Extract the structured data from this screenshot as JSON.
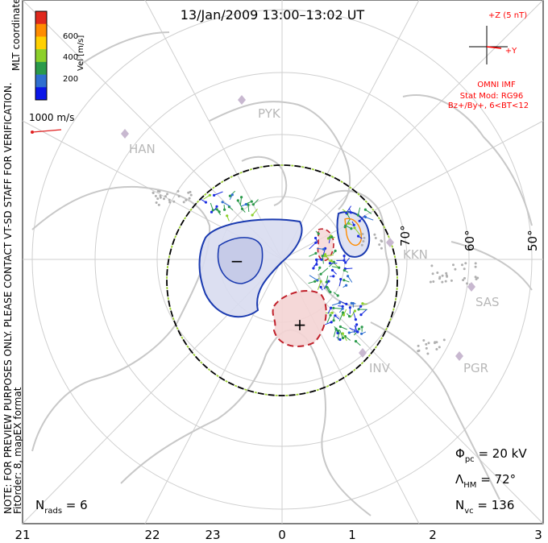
{
  "title": "13/Jan/2009  13:00–13:02  UT",
  "imf_box": {
    "z_label": "+Z (5 nT)",
    "y_label": "+Y",
    "omni": "OMNI IMF",
    "stat_mod": "Stat Mod: RG96",
    "condition": "Bz+/By+, 6<BT<12"
  },
  "colorbar": {
    "label": "Vel [m/s]",
    "ticks": [
      "600",
      "400",
      "200"
    ],
    "colors": [
      "#e0291d",
      "#ff8c00",
      "#ffd000",
      "#8cd02a",
      "#2a9a4a",
      "#2f6fd0",
      "#0a16e8"
    ]
  },
  "coords_label": "MLT coordinates",
  "vector_scale": "1000 m/s",
  "left_note": "NOTE: FOR PREVIEW PURPOSES ONLY. PLEASE CONTACT VT-SD STAFF FOR VERIFICATION.",
  "fit_order": "FitOrder: 8, mapEX format",
  "lat_labels": [
    "70°",
    "60°",
    "50°"
  ],
  "site_labels": [
    "PYK",
    "HAN",
    "KKN",
    "SAS",
    "INV",
    "PGR"
  ],
  "mlt_ticks": [
    "21",
    "22",
    "23",
    "0",
    "1",
    "2",
    "3"
  ],
  "stats": {
    "pc_sym": "Φ",
    "pc_sub": "pc",
    "pc_val": " = 20 kV",
    "hm_sym": "Λ",
    "hm_sub": "HM",
    "hm_val": " = 72°",
    "vc_sym": "N",
    "vc_sub": "vc",
    "vc_val": " = 136",
    "rads_sym": "N",
    "rads_sub": "rads",
    "rads_val": " = 6"
  },
  "potential_marks": {
    "negative": "−",
    "positive": "+"
  }
}
